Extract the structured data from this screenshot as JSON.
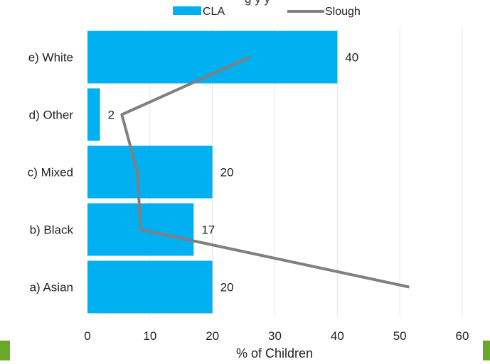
{
  "chart_data": {
    "type": "bar",
    "orientation": "horizontal",
    "categories": [
      "a) Asian",
      "b) Black",
      "c) Mixed",
      "d) Other",
      "e) White"
    ],
    "title_fragment": "g          y            y",
    "xlabel": "% of Children",
    "ylabel": "",
    "xlim": [
      0,
      60
    ],
    "xticks": [
      0,
      10,
      20,
      30,
      40,
      50,
      60
    ],
    "grid": "vertical",
    "legend": {
      "placement": "top"
    },
    "series": [
      {
        "name": "CLA",
        "kind": "bar",
        "color": "#00b0f0",
        "values": [
          20,
          17,
          20,
          2,
          40
        ],
        "data_labels": [
          "20",
          "17",
          "20",
          "2",
          "40"
        ]
      },
      {
        "name": "Slough",
        "kind": "line",
        "color": "#808080",
        "values": [
          51.5,
          8.5,
          8,
          5.5,
          26
        ]
      }
    ]
  },
  "decor": {
    "corner_color": "#6aa82a"
  }
}
